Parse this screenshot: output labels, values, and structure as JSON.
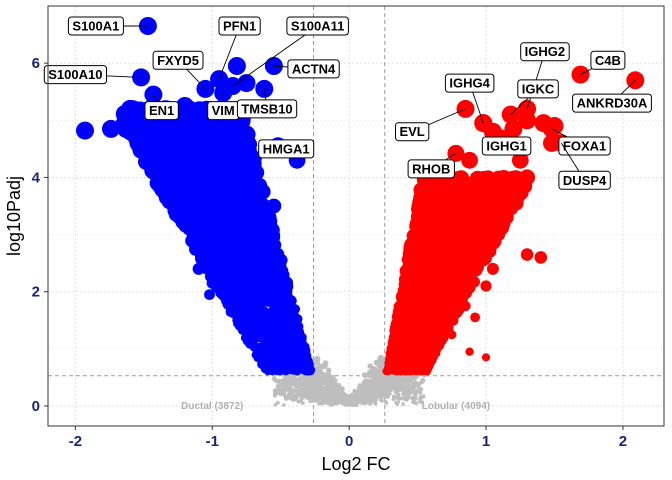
{
  "chart_data": {
    "type": "scatter",
    "subtype": "volcano",
    "title": "",
    "xlabel": "Log2 FC",
    "ylabel": "log10Padj",
    "xlim": [
      -2.2,
      2.3
    ],
    "ylim": [
      -0.35,
      7.0
    ],
    "x_ticks": [
      -2,
      -1,
      0,
      1,
      2
    ],
    "y_ticks": [
      0,
      2,
      4,
      6
    ],
    "grid": true,
    "fc_threshold": [
      -0.26,
      0.26
    ],
    "padj_threshold": 0.53,
    "colors": {
      "ductal": "#0000ff",
      "lobular": "#ff0000",
      "ns": "#bebebe",
      "threshold_line": "#999999",
      "tick_text": "#1a237e"
    },
    "group_labels": [
      {
        "text": "Ductal (3872)",
        "x": -1.0,
        "y": -0.05
      },
      {
        "text": "Lobular (4094)",
        "x": 0.78,
        "y": -0.05
      }
    ],
    "labeled_genes": [
      {
        "gene": "S100A1",
        "x": -1.47,
        "y": 6.65,
        "group": "ductal",
        "label_x": -1.85,
        "label_y": 6.65
      },
      {
        "gene": "PFN1",
        "x": -0.95,
        "y": 5.72,
        "group": "ductal",
        "label_x": -0.8,
        "label_y": 6.65
      },
      {
        "gene": "S100A11",
        "x": -0.85,
        "y": 5.6,
        "group": "ductal",
        "label_x": -0.23,
        "label_y": 6.65
      },
      {
        "gene": "FXYD5",
        "x": -1.05,
        "y": 5.55,
        "group": "ductal",
        "label_x": -1.25,
        "label_y": 6.05
      },
      {
        "gene": "S100A10",
        "x": -1.52,
        "y": 5.75,
        "group": "ductal",
        "label_x": -2.0,
        "label_y": 5.8
      },
      {
        "gene": "ACTN4",
        "x": -0.55,
        "y": 5.95,
        "group": "ductal",
        "label_x": -0.26,
        "label_y": 5.9
      },
      {
        "gene": "EN1",
        "x": -1.43,
        "y": 5.45,
        "group": "ductal",
        "label_x": -1.37,
        "label_y": 5.17
      },
      {
        "gene": "VIM",
        "x": -0.92,
        "y": 5.48,
        "group": "ductal",
        "label_x": -0.92,
        "label_y": 5.17
      },
      {
        "gene": "TMSB10",
        "x": -0.62,
        "y": 5.55,
        "group": "ductal",
        "label_x": -0.6,
        "label_y": 5.2
      },
      {
        "gene": "HMGA1",
        "x": -0.52,
        "y": 4.55,
        "group": "ductal",
        "label_x": -0.46,
        "label_y": 4.5
      },
      {
        "gene": "IGHG2",
        "x": 1.3,
        "y": 5.2,
        "group": "lobular",
        "label_x": 1.43,
        "label_y": 6.2
      },
      {
        "gene": "C4B",
        "x": 1.69,
        "y": 5.8,
        "group": "lobular",
        "label_x": 1.89,
        "label_y": 6.05
      },
      {
        "gene": "IGHG4",
        "x": 0.98,
        "y": 4.95,
        "group": "lobular",
        "label_x": 0.88,
        "label_y": 5.65
      },
      {
        "gene": "IGKC",
        "x": 1.18,
        "y": 5.1,
        "group": "lobular",
        "label_x": 1.38,
        "label_y": 5.55
      },
      {
        "gene": "ANKRD30A",
        "x": 2.09,
        "y": 5.7,
        "group": "lobular",
        "label_x": 1.92,
        "label_y": 5.3
      },
      {
        "gene": "EVL",
        "x": 0.85,
        "y": 5.2,
        "group": "lobular",
        "label_x": 0.46,
        "label_y": 4.8
      },
      {
        "gene": "IGHG1",
        "x": 1.12,
        "y": 4.68,
        "group": "lobular",
        "label_x": 1.15,
        "label_y": 4.55
      },
      {
        "gene": "FOXA1",
        "x": 1.48,
        "y": 4.85,
        "group": "lobular",
        "label_x": 1.72,
        "label_y": 4.55
      },
      {
        "gene": "RHOB",
        "x": 0.78,
        "y": 4.42,
        "group": "lobular",
        "label_x": 0.6,
        "label_y": 4.15
      },
      {
        "gene": "DUSP4",
        "x": 1.55,
        "y": 4.6,
        "group": "lobular",
        "label_x": 1.72,
        "label_y": 3.95
      }
    ]
  }
}
